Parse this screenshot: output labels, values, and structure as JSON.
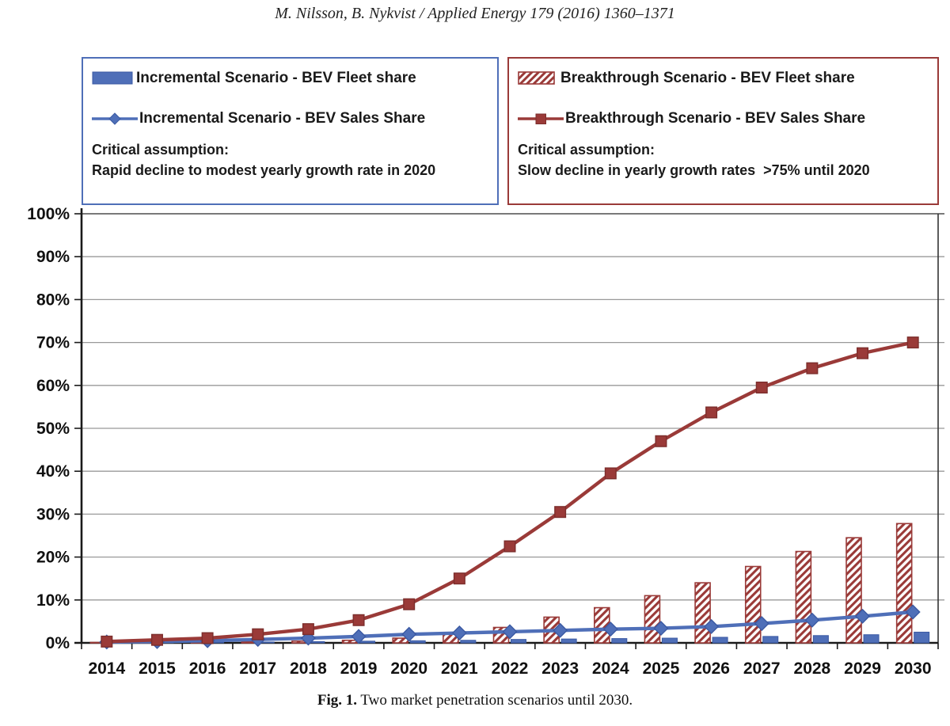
{
  "header": {
    "citation": "M. Nilsson, B. Nykvist / Applied Energy 179 (2016) 1360–1371"
  },
  "legend": {
    "incremental": {
      "fleet_label": "Incremental Scenario - BEV Fleet share",
      "sales_label": "Incremental Scenario - BEV Sales Share",
      "assumption_title": "Critical assumption:",
      "assumption_text": "Rapid decline to modest yearly growth rate in 2020",
      "color": "#4F6FB8",
      "color_dark": "#3B5AA3"
    },
    "breakthrough": {
      "fleet_label": "Breakthrough Scenario - BEV Fleet share",
      "sales_label": "Breakthrough Scenario - BEV Sales Share",
      "assumption_title": "Critical assumption:",
      "assumption_text": "Slow decline in yearly growth rates  >75% until 2020",
      "color": "#9A3A38",
      "color_dark": "#7C2E2C"
    }
  },
  "chart_data": {
    "type": "bar+line combo",
    "title": "",
    "xlabel": "",
    "ylabel": "",
    "unit": "percent",
    "grid": true,
    "legend_position": "top, two framed boxes",
    "ylim": [
      0,
      100
    ],
    "ytick_step": 10,
    "ytick_labels": [
      "0%",
      "10%",
      "20%",
      "30%",
      "40%",
      "50%",
      "60%",
      "70%",
      "80%",
      "90%",
      "100%"
    ],
    "categories": [
      "2014",
      "2015",
      "2016",
      "2017",
      "2018",
      "2019",
      "2020",
      "2021",
      "2022",
      "2023",
      "2024",
      "2025",
      "2026",
      "2027",
      "2028",
      "2029",
      "2030"
    ],
    "series": [
      {
        "name": "Incremental Scenario - BEV Fleet share",
        "render": "bar",
        "slot": "right",
        "pattern": "solid",
        "color": "#4F6FB8",
        "edge": "#3B5AA3",
        "values": [
          0.1,
          0.1,
          0.1,
          0.2,
          0.3,
          0.4,
          0.5,
          0.6,
          0.8,
          0.9,
          1.0,
          1.1,
          1.3,
          1.5,
          1.7,
          1.9,
          2.5
        ]
      },
      {
        "name": "Breakthrough Scenario - BEV Fleet share",
        "render": "bar",
        "slot": "left",
        "pattern": "diagonal-hatch",
        "color": "#9A3A38",
        "edge": "#9A3A38",
        "values": [
          0.1,
          0.1,
          0.2,
          0.3,
          0.4,
          0.6,
          1.1,
          2.1,
          3.6,
          6.0,
          8.2,
          11.0,
          14.0,
          17.8,
          21.3,
          24.5,
          27.8
        ]
      },
      {
        "name": "Incremental Scenario - BEV Sales Share",
        "render": "line",
        "marker": "diamond",
        "color": "#4F6FB8",
        "edge": "#3B5AA3",
        "values": [
          0.2,
          0.3,
          0.5,
          0.8,
          1.1,
          1.5,
          2.0,
          2.3,
          2.6,
          2.9,
          3.2,
          3.4,
          3.8,
          4.5,
          5.3,
          6.2,
          7.2
        ]
      },
      {
        "name": "Breakthrough Scenario - BEV Sales Share",
        "render": "line",
        "marker": "square",
        "color": "#9A3A38",
        "edge": "#7C2E2C",
        "values": [
          0.3,
          0.7,
          1.1,
          2.0,
          3.2,
          5.3,
          9.0,
          15.0,
          22.5,
          30.5,
          39.5,
          47.0,
          53.7,
          59.5,
          64.0,
          67.5,
          70.0
        ]
      }
    ]
  },
  "caption": {
    "fig_label": "Fig. 1.",
    "text": " Two market penetration scenarios until 2030."
  }
}
